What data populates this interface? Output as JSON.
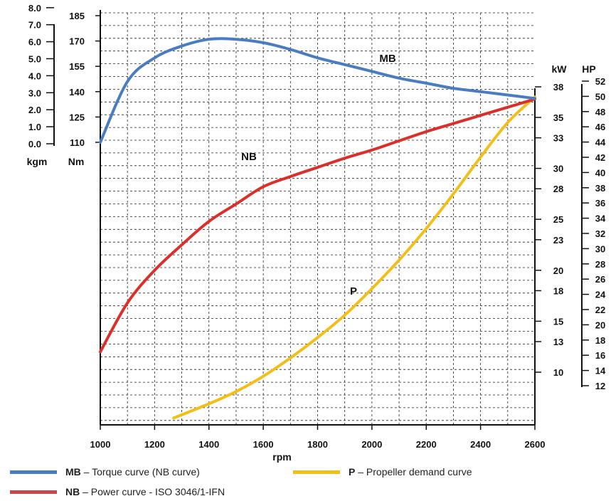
{
  "chart_data": {
    "type": "line",
    "xlabel": "rpm",
    "x_ticks": [
      1000,
      1200,
      1400,
      1600,
      1800,
      2000,
      2200,
      2400,
      2600
    ],
    "xlim": [
      1000,
      2600
    ],
    "grid": true,
    "axes": {
      "kgm": {
        "label": "kgm",
        "ticks": [
          "0.0",
          "1.0",
          "2.0",
          "3.0",
          "4.0",
          "5.0",
          "6.0",
          "7.0",
          "8.0"
        ]
      },
      "nm": {
        "label": "Nm",
        "ticks": [
          "110",
          "125",
          "140",
          "155",
          "170",
          "185"
        ]
      },
      "kw": {
        "label": "kW",
        "ticks": [
          "10",
          "13",
          "15",
          "18",
          "20",
          "23",
          "25",
          "28",
          "30",
          "33",
          "35",
          "38"
        ]
      },
      "hp": {
        "label": "HP",
        "ticks": [
          "12",
          "14",
          "16",
          "18",
          "20",
          "22",
          "24",
          "26",
          "28",
          "30",
          "32",
          "34",
          "36",
          "38",
          "40",
          "42",
          "44",
          "46",
          "48",
          "50",
          "52"
        ]
      }
    },
    "series": [
      {
        "name": "MB",
        "axis": "Nm",
        "color": "#4a7cc0",
        "x": [
          1000,
          1100,
          1200,
          1300,
          1400,
          1500,
          1600,
          1700,
          1800,
          1900,
          2000,
          2100,
          2200,
          2300,
          2400,
          2500,
          2600
        ],
        "y": [
          110,
          146,
          160,
          167,
          171,
          171,
          169,
          165,
          160,
          156,
          152,
          148,
          145,
          142,
          140,
          138,
          136
        ]
      },
      {
        "name": "NB",
        "axis": "kW",
        "color": "#d9302b",
        "x": [
          1000,
          1100,
          1200,
          1300,
          1400,
          1500,
          1600,
          1700,
          1800,
          1900,
          2000,
          2100,
          2200,
          2300,
          2400,
          2500,
          2600
        ],
        "y": [
          12.0,
          16.8,
          20.0,
          22.5,
          24.8,
          26.5,
          28.2,
          29.2,
          30.1,
          31.0,
          31.8,
          32.7,
          33.6,
          34.4,
          35.2,
          36.0,
          36.8
        ]
      },
      {
        "name": "P",
        "axis": "kW",
        "color": "#f2bf1a",
        "x": [
          1270,
          1400,
          1500,
          1600,
          1700,
          1800,
          1900,
          2000,
          2100,
          2200,
          2300,
          2400,
          2500,
          2600
        ],
        "y": [
          5.5,
          6.9,
          8.1,
          9.6,
          11.4,
          13.4,
          15.6,
          18.2,
          21.0,
          24.1,
          27.5,
          31.1,
          34.5,
          37.0
        ]
      }
    ],
    "labels": {
      "mb": "MB",
      "nb": "NB",
      "p": "P"
    }
  },
  "legend": [
    {
      "key": "MB",
      "text": "– Torque curve (NB curve)",
      "color": "#4a7cc0"
    },
    {
      "key": "P",
      "text": "– Propeller demand curve",
      "color": "#f2bf1a"
    },
    {
      "key": "NB",
      "text": "– Power curve - ISO 3046/1-IFN",
      "color": "#c9474b"
    }
  ]
}
